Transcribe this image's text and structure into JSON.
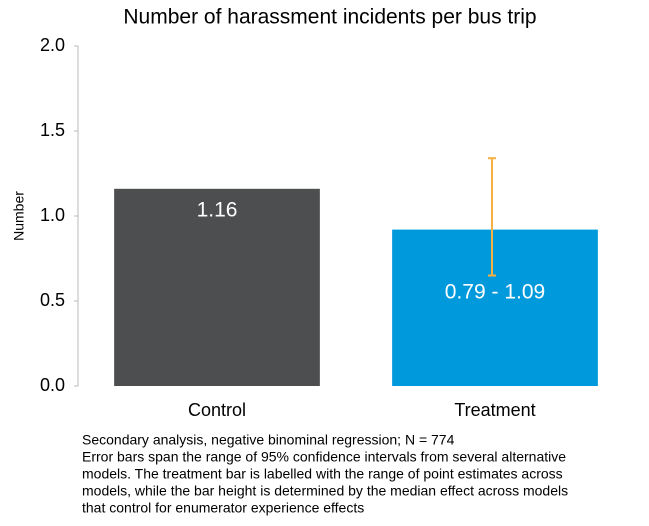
{
  "chart_data": {
    "type": "bar",
    "title": "Number of harassment incidents per bus trip",
    "y_label": "Number",
    "categories": [
      "Control",
      "Treatment"
    ],
    "values": [
      1.16,
      0.92
    ],
    "colors": [
      "#4d4e50",
      "#0099dc"
    ],
    "value_labels": [
      "1.16",
      null
    ],
    "error_bars": [
      null,
      {
        "low": 0.65,
        "high": 1.34
      }
    ],
    "error_color": "#f5b041",
    "annotations": [
      "0.79 - 1.09"
    ],
    "ylim": [
      0,
      2
    ],
    "yticks": [
      {
        "value": 0,
        "label": "0.0"
      },
      {
        "value": 0.5,
        "label": "0.5"
      },
      {
        "value": 1,
        "label": "1.0"
      },
      {
        "value": 1.5,
        "label": "1.5"
      },
      {
        "value": 2,
        "label": "2.0"
      }
    ],
    "grid": false,
    "footnote": [
      "Secondary analysis, negative binominal regression; N = 774",
      "Error bars span the range of 95% confidence intervals from several alternative",
      "models. The treatment bar is labelled with the range of point estimates across",
      "models, while the bar height is determined by the median effect across models",
      "that control for enumerator experience effects"
    ]
  }
}
